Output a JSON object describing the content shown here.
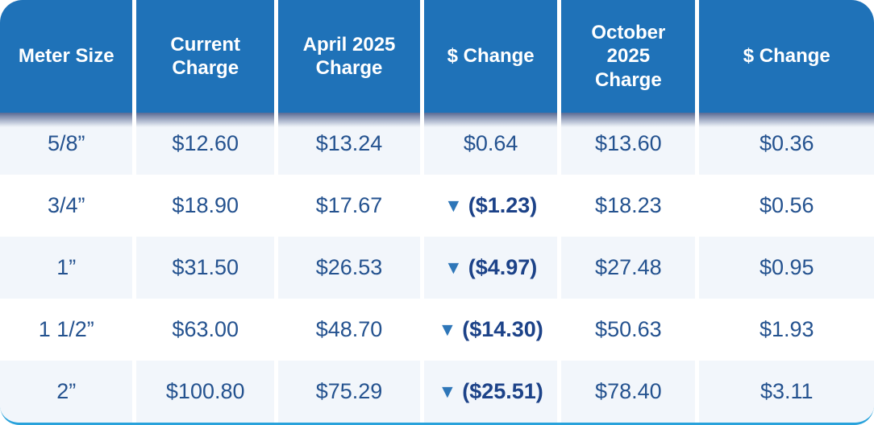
{
  "table": {
    "columns": [
      "Meter Size",
      "Current Charge",
      "April 2025 Charge",
      "$ Change",
      "October 2025 Charge",
      "$ Change"
    ],
    "rows": [
      {
        "cells": [
          {
            "text": "5/8”",
            "negative": false
          },
          {
            "text": "$12.60",
            "negative": false
          },
          {
            "text": "$13.24",
            "negative": false
          },
          {
            "text": "$0.64",
            "negative": false
          },
          {
            "text": "$13.60",
            "negative": false
          },
          {
            "text": "$0.36",
            "negative": false
          }
        ]
      },
      {
        "cells": [
          {
            "text": "3/4”",
            "negative": false
          },
          {
            "text": "$18.90",
            "negative": false
          },
          {
            "text": "$17.67",
            "negative": false
          },
          {
            "text": "($1.23)",
            "negative": true
          },
          {
            "text": "$18.23",
            "negative": false
          },
          {
            "text": "$0.56",
            "negative": false
          }
        ]
      },
      {
        "cells": [
          {
            "text": "1”",
            "negative": false
          },
          {
            "text": "$31.50",
            "negative": false
          },
          {
            "text": "$26.53",
            "negative": false
          },
          {
            "text": "($4.97)",
            "negative": true
          },
          {
            "text": "$27.48",
            "negative": false
          },
          {
            "text": "$0.95",
            "negative": false
          }
        ]
      },
      {
        "cells": [
          {
            "text": "1 1/2”",
            "negative": false
          },
          {
            "text": "$63.00",
            "negative": false
          },
          {
            "text": "$48.70",
            "negative": false
          },
          {
            "text": "($14.30)",
            "negative": true
          },
          {
            "text": "$50.63",
            "negative": false
          },
          {
            "text": "$1.93",
            "negative": false
          }
        ]
      },
      {
        "cells": [
          {
            "text": "2”",
            "negative": false
          },
          {
            "text": "$100.80",
            "negative": false
          },
          {
            "text": "$75.29",
            "negative": false
          },
          {
            "text": "($25.51)",
            "negative": true
          },
          {
            "text": "$78.40",
            "negative": false
          },
          {
            "text": "$3.11",
            "negative": false
          }
        ]
      }
    ]
  },
  "icons": {
    "down_triangle": "▼"
  },
  "colors": {
    "header_blue": "#1f72b8",
    "header_text": "#ffffff",
    "row_alt_background": "#f2f6fb",
    "value_text": "#24528f",
    "negative_text": "#1c4288",
    "triangle_blue": "#2e76b8",
    "bottom_border": "#29a2db"
  },
  "chart_data": {
    "type": "table",
    "title": "",
    "columns": [
      "Meter Size",
      "Current Charge",
      "April 2025 Charge",
      "$ Change",
      "October 2025 Charge",
      "$ Change"
    ],
    "rows": [
      [
        "5/8”",
        "$12.60",
        "$13.24",
        "$0.64",
        "$13.60",
        "$0.36"
      ],
      [
        "3/4”",
        "$18.90",
        "$17.67",
        "▼($1.23)",
        "$18.23",
        "$0.56"
      ],
      [
        "1”",
        "$31.50",
        "$26.53",
        "▼($4.97)",
        "$27.48",
        "$0.95"
      ],
      [
        "1 1/2”",
        "$63.00",
        "$48.70",
        "▼($14.30)",
        "$50.63",
        "$1.93"
      ],
      [
        "2”",
        "$100.80",
        "$75.29",
        "▼($25.51)",
        "$78.40",
        "$3.11"
      ]
    ],
    "notes": "Decreases in the $ Change columns are shown in parentheses with a blue down-triangle icon; rows alternate light-blue and white backgrounds; header row is solid blue with white bold text."
  }
}
